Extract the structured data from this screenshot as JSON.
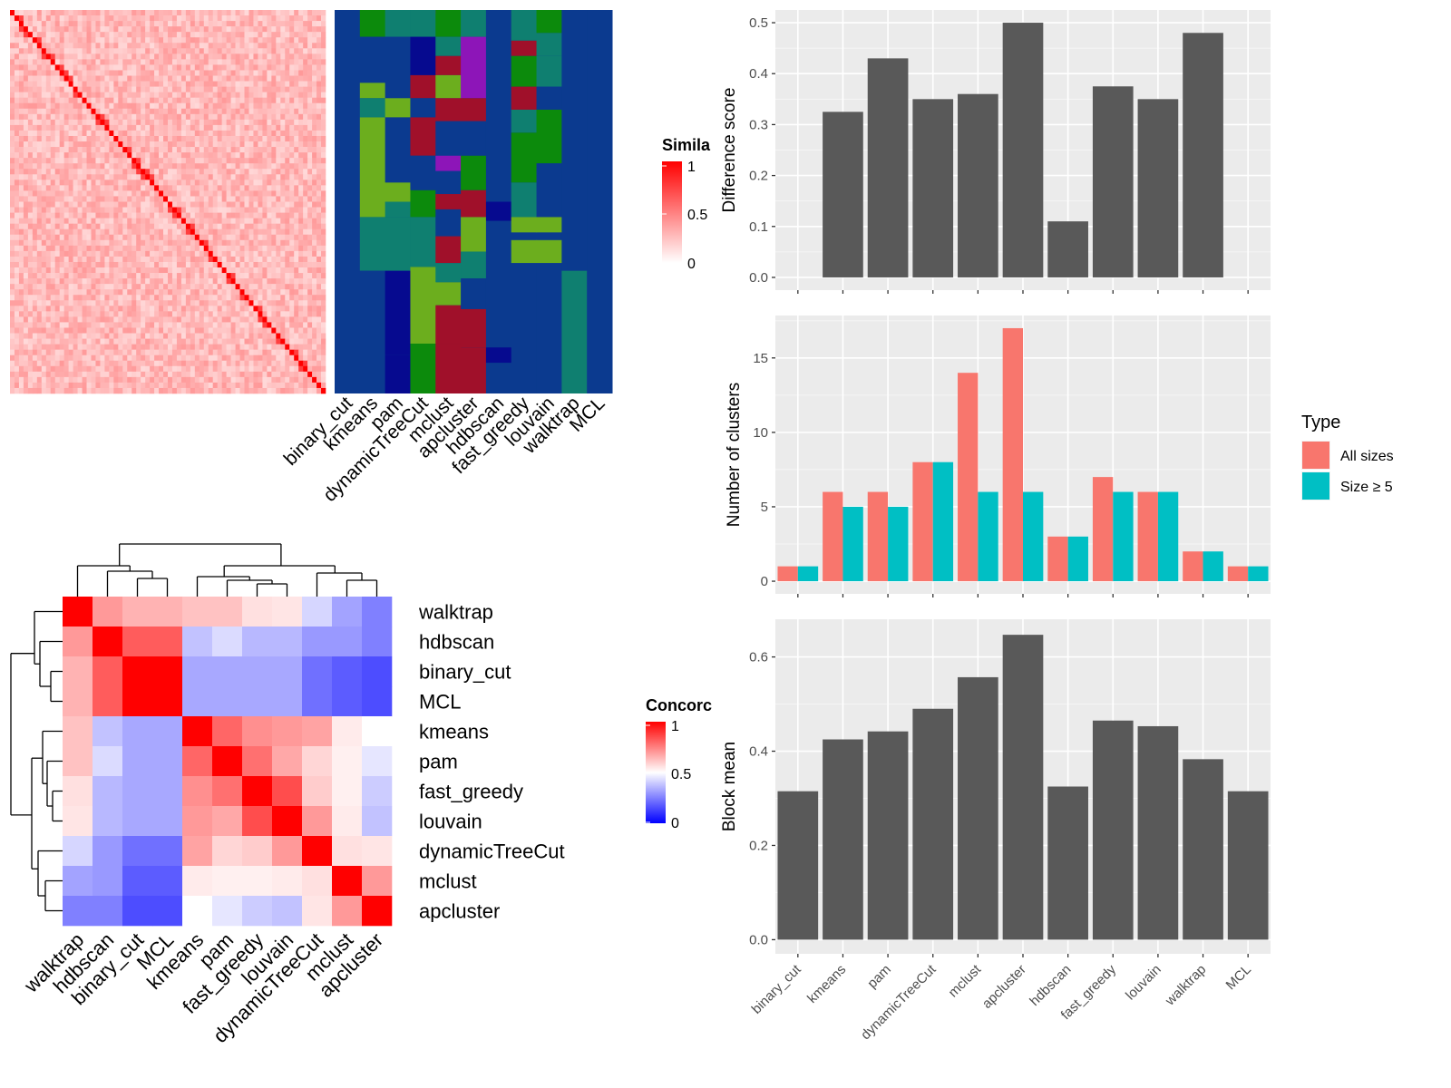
{
  "chart_data": [
    {
      "type": "heatmap",
      "legend": {
        "title": "Simila",
        "ticks": [
          "1",
          "0.5",
          "0"
        ]
      },
      "column_labels": [
        "binary_cut",
        "kmeans",
        "pam",
        "dynamicTreeCut",
        "mclust",
        "apcluster",
        "hdbscan",
        "fast_greedy",
        "louvain",
        "walktrap",
        "MCL"
      ],
      "colors": {
        "high": "#ff0000",
        "low": "#ffffff",
        "navy": "#0b3a8f",
        "teal": "#0f7f70",
        "green": "#0c8a0c",
        "lightgreen": "#6cae1e",
        "red": "#a0102a",
        "purple": "#8d15b8",
        "blue": "#060a8f"
      }
    },
    {
      "type": "heatmap",
      "legend": {
        "title": "Concorc",
        "ticks": [
          "1",
          "0.5",
          "0"
        ]
      },
      "labels": [
        "walktrap",
        "hdbscan",
        "binary_cut",
        "MCL",
        "kmeans",
        "pam",
        "fast_greedy",
        "louvain",
        "dynamicTreeCut",
        "mclust",
        "apcluster"
      ],
      "values": [
        [
          1.0,
          0.7,
          0.65,
          0.65,
          0.62,
          0.62,
          0.56,
          0.55,
          0.42,
          0.32,
          0.25
        ],
        [
          0.7,
          1.0,
          0.82,
          0.82,
          0.38,
          0.43,
          0.36,
          0.36,
          0.3,
          0.3,
          0.25
        ],
        [
          0.65,
          0.82,
          1.0,
          1.0,
          0.33,
          0.33,
          0.33,
          0.33,
          0.22,
          0.18,
          0.15
        ],
        [
          0.65,
          0.82,
          1.0,
          1.0,
          0.33,
          0.33,
          0.33,
          0.33,
          0.22,
          0.18,
          0.15
        ],
        [
          0.62,
          0.38,
          0.33,
          0.33,
          1.0,
          0.8,
          0.72,
          0.7,
          0.68,
          0.54,
          0.5
        ],
        [
          0.62,
          0.43,
          0.33,
          0.33,
          0.8,
          1.0,
          0.78,
          0.67,
          0.58,
          0.53,
          0.45
        ],
        [
          0.56,
          0.36,
          0.33,
          0.33,
          0.72,
          0.78,
          1.0,
          0.85,
          0.6,
          0.53,
          0.4
        ],
        [
          0.55,
          0.36,
          0.33,
          0.33,
          0.7,
          0.67,
          0.85,
          1.0,
          0.7,
          0.54,
          0.38
        ],
        [
          0.42,
          0.3,
          0.22,
          0.22,
          0.68,
          0.58,
          0.6,
          0.7,
          1.0,
          0.56,
          0.55
        ],
        [
          0.32,
          0.3,
          0.18,
          0.18,
          0.54,
          0.53,
          0.53,
          0.54,
          0.56,
          1.0,
          0.7
        ],
        [
          0.25,
          0.25,
          0.15,
          0.15,
          0.5,
          0.45,
          0.4,
          0.38,
          0.55,
          0.7,
          1.0
        ]
      ],
      "colors": {
        "high": "#ff0000",
        "mid": "#ffffff",
        "low": "#0000ff"
      }
    },
    {
      "type": "bar",
      "categories": [
        "binary_cut",
        "kmeans",
        "pam",
        "dynamicTreeCut",
        "mclust",
        "apcluster",
        "hdbscan",
        "fast_greedy",
        "louvain",
        "walktrap",
        "MCL"
      ],
      "values": [
        0.0,
        0.325,
        0.43,
        0.35,
        0.36,
        0.5,
        0.11,
        0.375,
        0.35,
        0.48,
        0.0
      ],
      "ylabel": "Difference score",
      "ylim": [
        -0.025,
        0.525
      ],
      "yticks": [
        "0.0",
        "0.1",
        "0.2",
        "0.3",
        "0.4",
        "0.5"
      ],
      "bar_color": "#595959"
    },
    {
      "type": "bar",
      "categories": [
        "binary_cut",
        "kmeans",
        "pam",
        "dynamicTreeCut",
        "mclust",
        "apcluster",
        "hdbscan",
        "fast_greedy",
        "louvain",
        "walktrap",
        "MCL"
      ],
      "series": [
        {
          "name": "All sizes",
          "values": [
            1,
            6,
            6,
            8,
            14,
            17,
            3,
            7,
            6,
            2,
            1
          ],
          "color": "#f8766d"
        },
        {
          "name": "Size ≥ 5",
          "values": [
            1,
            5,
            5,
            8,
            6,
            6,
            3,
            6,
            6,
            2,
            1
          ],
          "color": "#00bfc4"
        }
      ],
      "ylabel": "Number of clusters",
      "ylim": [
        -0.85,
        17.85
      ],
      "yticks": [
        "0",
        "5",
        "10",
        "15"
      ],
      "legend": {
        "title": "Type",
        "placement": "right"
      }
    },
    {
      "type": "bar",
      "categories": [
        "binary_cut",
        "kmeans",
        "pam",
        "dynamicTreeCut",
        "mclust",
        "apcluster",
        "hdbscan",
        "fast_greedy",
        "louvain",
        "walktrap",
        "MCL"
      ],
      "values": [
        0.315,
        0.425,
        0.442,
        0.49,
        0.557,
        0.647,
        0.325,
        0.465,
        0.453,
        0.383,
        0.315
      ],
      "ylabel": "Block mean",
      "ylim": [
        -0.03,
        0.68
      ],
      "yticks": [
        "0.0",
        "0.2",
        "0.4",
        "0.6"
      ],
      "bar_color": "#595959"
    }
  ]
}
